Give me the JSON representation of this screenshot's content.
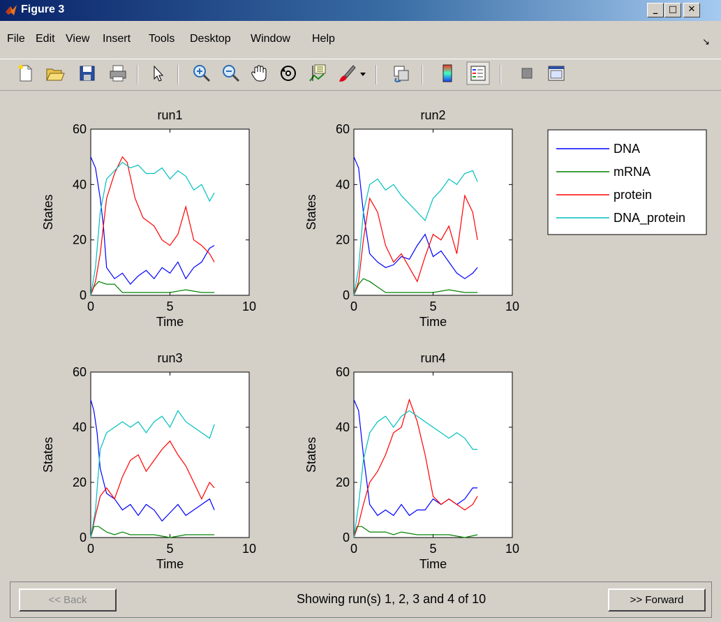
{
  "window": {
    "title": "Figure 3"
  },
  "menu": {
    "items": [
      "File",
      "Edit",
      "View",
      "Insert",
      "Tools",
      "Desktop",
      "Window",
      "Help"
    ]
  },
  "toolbar": {
    "icons": [
      "new-figure-icon",
      "open-file-icon",
      "save-icon",
      "print-icon",
      "select-arrow-icon",
      "zoom-in-icon",
      "zoom-out-icon",
      "pan-hand-icon",
      "rotate-3d-icon",
      "data-cursor-icon",
      "brush-icon",
      "brush-dropdown-icon",
      "link-plot-icon",
      "colorbar-icon",
      "legend-icon",
      "hide-plot-tools-icon",
      "show-plot-tools-icon"
    ]
  },
  "legend": {
    "entries": [
      {
        "label": "DNA",
        "color": "#0000ff"
      },
      {
        "label": "mRNA",
        "color": "#008000"
      },
      {
        "label": "protein",
        "color": "#ff0000"
      },
      {
        "label": "DNA_protein",
        "color": "#00bfbf"
      }
    ]
  },
  "chart_data": [
    {
      "type": "line",
      "title": "run1",
      "xlabel": "Time",
      "ylabel": "States",
      "xlim": [
        0,
        10
      ],
      "ylim": [
        0,
        60
      ],
      "xticks": [
        0,
        5,
        10
      ],
      "yticks": [
        0,
        20,
        40,
        60
      ],
      "series": [
        {
          "name": "DNA",
          "color": "#0000ff",
          "x": [
            0,
            0.3,
            0.6,
            0.8,
            1,
            1.5,
            2,
            2.5,
            3,
            3.5,
            4,
            4.5,
            5,
            5.5,
            6,
            6.5,
            7,
            7.5,
            7.8
          ],
          "y": [
            50,
            46,
            35,
            25,
            10,
            6,
            8,
            4,
            7,
            9,
            6,
            10,
            8,
            12,
            6,
            10,
            12,
            17,
            18
          ]
        },
        {
          "name": "mRNA",
          "color": "#008000",
          "x": [
            0,
            0.2,
            0.5,
            1,
            1.5,
            2,
            2.5,
            3,
            4,
            5,
            6,
            7,
            7.8
          ],
          "y": [
            0,
            3,
            5,
            4,
            4,
            1,
            1,
            1,
            1,
            1,
            2,
            1,
            1
          ]
        },
        {
          "name": "protein",
          "color": "#ff0000",
          "x": [
            0,
            0.3,
            0.6,
            1,
            1.5,
            2,
            2.3,
            2.8,
            3.3,
            4,
            4.5,
            5,
            5.5,
            6,
            6.5,
            7,
            7.5,
            7.8
          ],
          "y": [
            0,
            5,
            15,
            35,
            44,
            50,
            48,
            35,
            28,
            25,
            20,
            18,
            22,
            32,
            20,
            18,
            15,
            12
          ]
        },
        {
          "name": "DNA_protein",
          "color": "#00bfbf",
          "x": [
            0,
            0.3,
            0.6,
            1,
            1.5,
            2,
            2.5,
            3,
            3.5,
            4,
            4.5,
            5,
            5.5,
            6,
            6.5,
            7,
            7.5,
            7.8
          ],
          "y": [
            0,
            10,
            30,
            42,
            45,
            48,
            46,
            47,
            44,
            44,
            46,
            42,
            45,
            43,
            38,
            40,
            34,
            37
          ]
        }
      ]
    },
    {
      "type": "line",
      "title": "run2",
      "xlabel": "Time",
      "ylabel": "States",
      "xlim": [
        0,
        10
      ],
      "ylim": [
        0,
        60
      ],
      "xticks": [
        0,
        5,
        10
      ],
      "yticks": [
        0,
        20,
        40,
        60
      ],
      "series": [
        {
          "name": "DNA",
          "color": "#0000ff",
          "x": [
            0,
            0.3,
            0.6,
            1,
            1.5,
            2,
            2.5,
            3,
            3.5,
            4,
            4.5,
            5,
            5.5,
            6,
            6.5,
            7,
            7.5,
            7.8
          ],
          "y": [
            50,
            46,
            30,
            15,
            12,
            10,
            11,
            14,
            13,
            18,
            22,
            14,
            16,
            12,
            8,
            6,
            8,
            10
          ]
        },
        {
          "name": "mRNA",
          "color": "#008000",
          "x": [
            0,
            0.3,
            0.6,
            1,
            1.5,
            2,
            2.5,
            3,
            4,
            5,
            6,
            7,
            7.8
          ],
          "y": [
            0,
            4,
            6,
            5,
            3,
            1,
            1,
            1,
            1,
            1,
            2,
            1,
            1
          ]
        },
        {
          "name": "protein",
          "color": "#ff0000",
          "x": [
            0,
            0.3,
            0.6,
            1,
            1.5,
            2,
            2.5,
            3,
            3.5,
            4,
            4.5,
            5,
            5.5,
            6,
            6.5,
            7,
            7.5,
            7.8
          ],
          "y": [
            0,
            5,
            20,
            35,
            30,
            18,
            12,
            15,
            10,
            5,
            14,
            22,
            20,
            25,
            15,
            36,
            30,
            20
          ]
        },
        {
          "name": "DNA_protein",
          "color": "#00bfbf",
          "x": [
            0,
            0.3,
            0.6,
            1,
            1.5,
            2,
            2.5,
            3,
            3.5,
            4,
            4.5,
            5,
            5.5,
            6,
            6.5,
            7,
            7.5,
            7.8
          ],
          "y": [
            0,
            10,
            30,
            40,
            42,
            38,
            40,
            36,
            33,
            30,
            27,
            35,
            38,
            42,
            40,
            44,
            45,
            41
          ]
        }
      ]
    },
    {
      "type": "line",
      "title": "run3",
      "xlabel": "Time",
      "ylabel": "States",
      "xlim": [
        0,
        10
      ],
      "ylim": [
        0,
        60
      ],
      "xticks": [
        0,
        5,
        10
      ],
      "yticks": [
        0,
        20,
        40,
        60
      ],
      "series": [
        {
          "name": "DNA",
          "color": "#0000ff",
          "x": [
            0,
            0.2,
            0.4,
            0.6,
            1,
            1.5,
            2,
            2.5,
            3,
            3.5,
            4,
            4.5,
            5,
            5.5,
            6,
            6.5,
            7,
            7.5,
            7.8
          ],
          "y": [
            50,
            46,
            38,
            25,
            16,
            14,
            10,
            12,
            8,
            12,
            10,
            6,
            9,
            12,
            8,
            10,
            12,
            14,
            10
          ]
        },
        {
          "name": "mRNA",
          "color": "#008000",
          "x": [
            0,
            0.2,
            0.5,
            1,
            1.5,
            2,
            2.5,
            3,
            4,
            5,
            6,
            7,
            7.8
          ],
          "y": [
            0,
            4,
            4,
            2,
            1,
            2,
            1,
            1,
            1,
            0,
            1,
            1,
            1
          ]
        },
        {
          "name": "protein",
          "color": "#ff0000",
          "x": [
            0,
            0.3,
            0.6,
            1,
            1.5,
            2,
            2.5,
            3,
            3.5,
            4,
            4.5,
            5,
            5.5,
            6,
            6.5,
            7,
            7.5,
            7.8
          ],
          "y": [
            0,
            8,
            15,
            18,
            14,
            22,
            28,
            30,
            24,
            28,
            32,
            35,
            30,
            26,
            20,
            14,
            20,
            18
          ]
        },
        {
          "name": "DNA_protein",
          "color": "#00bfbf",
          "x": [
            0,
            0.3,
            0.6,
            1,
            1.5,
            2,
            2.5,
            3,
            3.5,
            4,
            4.5,
            5,
            5.5,
            6,
            6.5,
            7,
            7.5,
            7.8
          ],
          "y": [
            0,
            10,
            32,
            38,
            40,
            42,
            40,
            42,
            38,
            42,
            44,
            40,
            46,
            42,
            40,
            38,
            36,
            41
          ]
        }
      ]
    },
    {
      "type": "line",
      "title": "run4",
      "xlabel": "Time",
      "ylabel": "States",
      "xlim": [
        0,
        10
      ],
      "ylim": [
        0,
        60
      ],
      "xticks": [
        0,
        5,
        10
      ],
      "yticks": [
        0,
        20,
        40,
        60
      ],
      "series": [
        {
          "name": "DNA",
          "color": "#0000ff",
          "x": [
            0,
            0.3,
            0.6,
            1,
            1.5,
            2,
            2.5,
            3,
            3.5,
            4,
            4.5,
            5,
            5.5,
            6,
            6.5,
            7,
            7.5,
            7.8
          ],
          "y": [
            50,
            46,
            30,
            12,
            8,
            10,
            8,
            12,
            8,
            10,
            10,
            14,
            12,
            14,
            12,
            14,
            18,
            18
          ]
        },
        {
          "name": "mRNA",
          "color": "#008000",
          "x": [
            0,
            0.2,
            0.5,
            1,
            1.5,
            2,
            2.5,
            3,
            4,
            5,
            6,
            7,
            7.8
          ],
          "y": [
            0,
            4,
            4,
            2,
            2,
            2,
            1,
            2,
            1,
            1,
            1,
            0,
            1
          ]
        },
        {
          "name": "protein",
          "color": "#ff0000",
          "x": [
            0,
            0.3,
            0.6,
            1,
            1.5,
            2,
            2.5,
            3,
            3.5,
            4,
            4.5,
            5,
            5.5,
            6,
            6.5,
            7,
            7.5,
            7.8
          ],
          "y": [
            0,
            5,
            12,
            20,
            24,
            30,
            38,
            40,
            50,
            42,
            30,
            15,
            12,
            14,
            12,
            10,
            12,
            15
          ]
        },
        {
          "name": "DNA_protein",
          "color": "#00bfbf",
          "x": [
            0,
            0.3,
            0.6,
            1,
            1.5,
            2,
            2.5,
            3,
            3.5,
            4,
            4.5,
            5,
            5.5,
            6,
            6.5,
            7,
            7.5,
            7.8
          ],
          "y": [
            0,
            12,
            28,
            38,
            42,
            44,
            40,
            44,
            46,
            44,
            42,
            40,
            38,
            36,
            38,
            36,
            32,
            32
          ]
        }
      ]
    }
  ],
  "bottom": {
    "back_label": "<< Back",
    "status": "Showing run(s) 1, 2, 3 and 4 of 10",
    "forward_label": ">> Forward"
  }
}
